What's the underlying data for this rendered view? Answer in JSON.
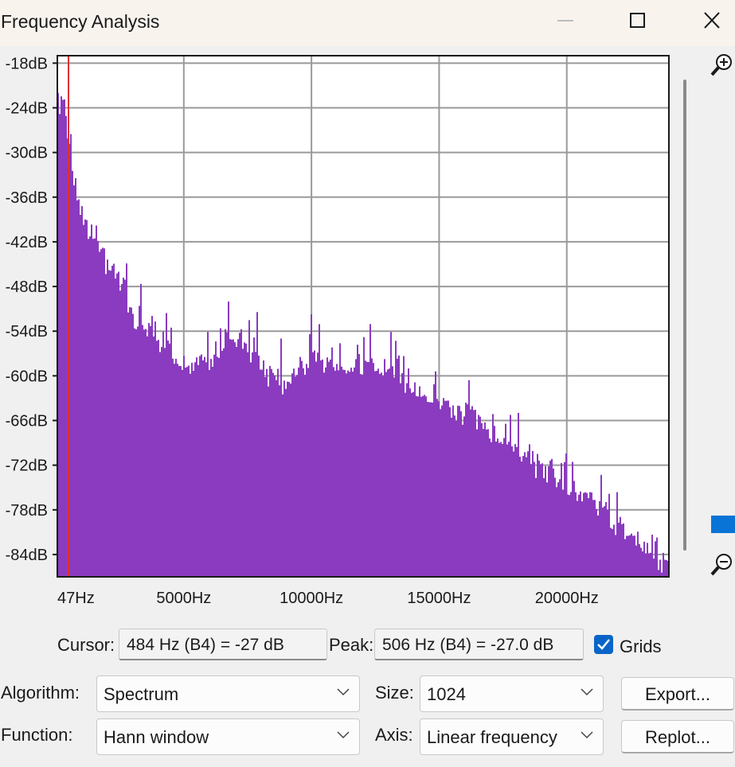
{
  "window": {
    "title": "Frequency Analysis"
  },
  "colors": {
    "spectrum": "#8a3bbf",
    "cursor": "#e03030",
    "grid": "#9a9a9a",
    "accent": "#0a74d6"
  },
  "chart_data": {
    "type": "bar",
    "title": "",
    "xlabel": "",
    "ylabel": "",
    "xlim": [
      47,
      24000
    ],
    "ylim": [
      -87,
      -17
    ],
    "grid": true,
    "y_ticks": [
      "-18dB",
      "-24dB",
      "-30dB",
      "-36dB",
      "-42dB",
      "-48dB",
      "-54dB",
      "-60dB",
      "-66dB",
      "-72dB",
      "-78dB",
      "-84dB"
    ],
    "y_tick_values": [
      -18,
      -24,
      -30,
      -36,
      -42,
      -48,
      -54,
      -60,
      -66,
      -72,
      -78,
      -84
    ],
    "x_ticks": [
      "47Hz",
      "5000Hz",
      "10000Hz",
      "15000Hz",
      "20000Hz"
    ],
    "x_tick_values": [
      47,
      5000,
      10000,
      15000,
      20000
    ],
    "cursor_hz": 484,
    "envelope": [
      {
        "hz": 47,
        "db": -22
      },
      {
        "hz": 250,
        "db": -18
      },
      {
        "hz": 500,
        "db": -28
      },
      {
        "hz": 1000,
        "db": -36
      },
      {
        "hz": 1500,
        "db": -40
      },
      {
        "hz": 2000,
        "db": -42
      },
      {
        "hz": 2500,
        "db": -44
      },
      {
        "hz": 3000,
        "db": -50
      },
      {
        "hz": 3500,
        "db": -51
      },
      {
        "hz": 4000,
        "db": -53
      },
      {
        "hz": 4500,
        "db": -54
      },
      {
        "hz": 5000,
        "db": -56
      },
      {
        "hz": 6000,
        "db": -55
      },
      {
        "hz": 7000,
        "db": -52
      },
      {
        "hz": 8000,
        "db": -56
      },
      {
        "hz": 9000,
        "db": -58
      },
      {
        "hz": 10000,
        "db": -54
      },
      {
        "hz": 11000,
        "db": -56
      },
      {
        "hz": 12000,
        "db": -56
      },
      {
        "hz": 13000,
        "db": -57
      },
      {
        "hz": 14000,
        "db": -59
      },
      {
        "hz": 15000,
        "db": -61
      },
      {
        "hz": 16000,
        "db": -62
      },
      {
        "hz": 17000,
        "db": -65
      },
      {
        "hz": 18000,
        "db": -67
      },
      {
        "hz": 19000,
        "db": -70
      },
      {
        "hz": 20000,
        "db": -72
      },
      {
        "hz": 21000,
        "db": -74
      },
      {
        "hz": 22000,
        "db": -78
      },
      {
        "hz": 23000,
        "db": -80
      },
      {
        "hz": 24000,
        "db": -84
      }
    ]
  },
  "readouts": {
    "cursor_label": "Cursor:",
    "cursor_value": "484 Hz (B4) = -27 dB",
    "peak_label": "Peak:",
    "peak_value": "506 Hz (B4) = -27.0 dB",
    "grids_label": "Grids",
    "grids_checked": true
  },
  "controls": {
    "algorithm_label": "Algorithm:",
    "algorithm_value": "Spectrum",
    "size_label": "Size:",
    "size_value": "1024",
    "function_label": "Function:",
    "function_value": "Hann window",
    "axis_label": "Axis:",
    "axis_value": "Linear frequency",
    "export_label": "Export...",
    "replot_label": "Replot..."
  },
  "icons": {
    "zoom_in": "zoom-in-icon",
    "zoom_out": "zoom-out-icon"
  }
}
